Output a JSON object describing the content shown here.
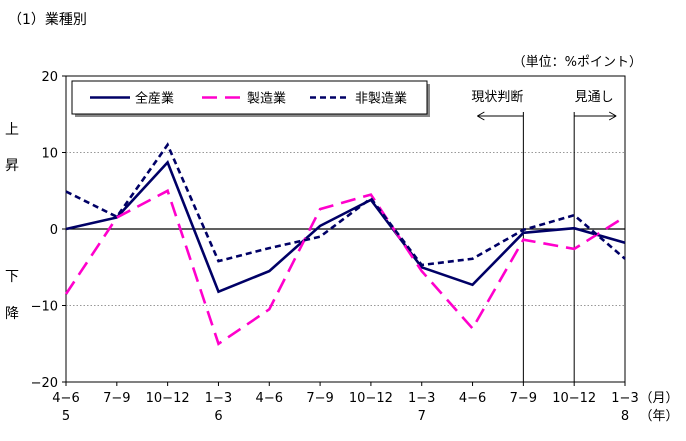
{
  "header": {
    "section_title": "（1）業種別",
    "unit_label": "（単位：%ポイント）"
  },
  "chart_data": {
    "type": "line",
    "title": "（1）業種別",
    "ylim": [
      -20,
      20
    ],
    "yticks": [
      "20",
      "10",
      "0",
      "−10",
      "−20"
    ],
    "ytick_values": [
      20,
      10,
      0,
      -10,
      -20
    ],
    "side_labels": {
      "up": [
        "上",
        "昇"
      ],
      "down": [
        "下",
        "降"
      ]
    },
    "categories": [
      "4−6",
      "7−9",
      "10−12",
      "1−3",
      "4−6",
      "7−9",
      "10−12",
      "1−3",
      "4−6",
      "7−9",
      "10−12",
      "1−3"
    ],
    "year_labels": [
      {
        "index": 0,
        "label": "5"
      },
      {
        "index": 3,
        "label": "6"
      },
      {
        "index": 7,
        "label": "7"
      },
      {
        "index": 11,
        "label": "8"
      }
    ],
    "axis_unit_month": "（月）",
    "axis_unit_year": "（年）",
    "series": [
      {
        "name": "全産業",
        "color": "#000066",
        "dash": "solid",
        "values": [
          0,
          1.5,
          8.7,
          -8.2,
          -5.5,
          0.4,
          3.8,
          -5.0,
          -7.3,
          -0.5,
          0.1,
          -1.8
        ]
      },
      {
        "name": "製造業",
        "color": "#ff00cc",
        "dash": "long",
        "values": [
          -8.5,
          1.5,
          5.0,
          -15.0,
          -10.5,
          2.6,
          4.5,
          -5.5,
          -13.0,
          -1.4,
          -2.6,
          1.6
        ]
      },
      {
        "name": "非製造業",
        "color": "#000066",
        "dash": "short",
        "values": [
          4.9,
          1.6,
          11.0,
          -4.2,
          -2.5,
          -1.0,
          4.0,
          -4.7,
          -3.9,
          -0.1,
          1.8,
          -3.9
        ]
      }
    ],
    "annotations": [
      {
        "label": "現状判断",
        "at_index": 9,
        "direction": "left"
      },
      {
        "label": "見通し",
        "at_index": 10,
        "direction": "right"
      }
    ],
    "legend_position": "top-left",
    "grid": "dotted horizontal at ±10"
  }
}
